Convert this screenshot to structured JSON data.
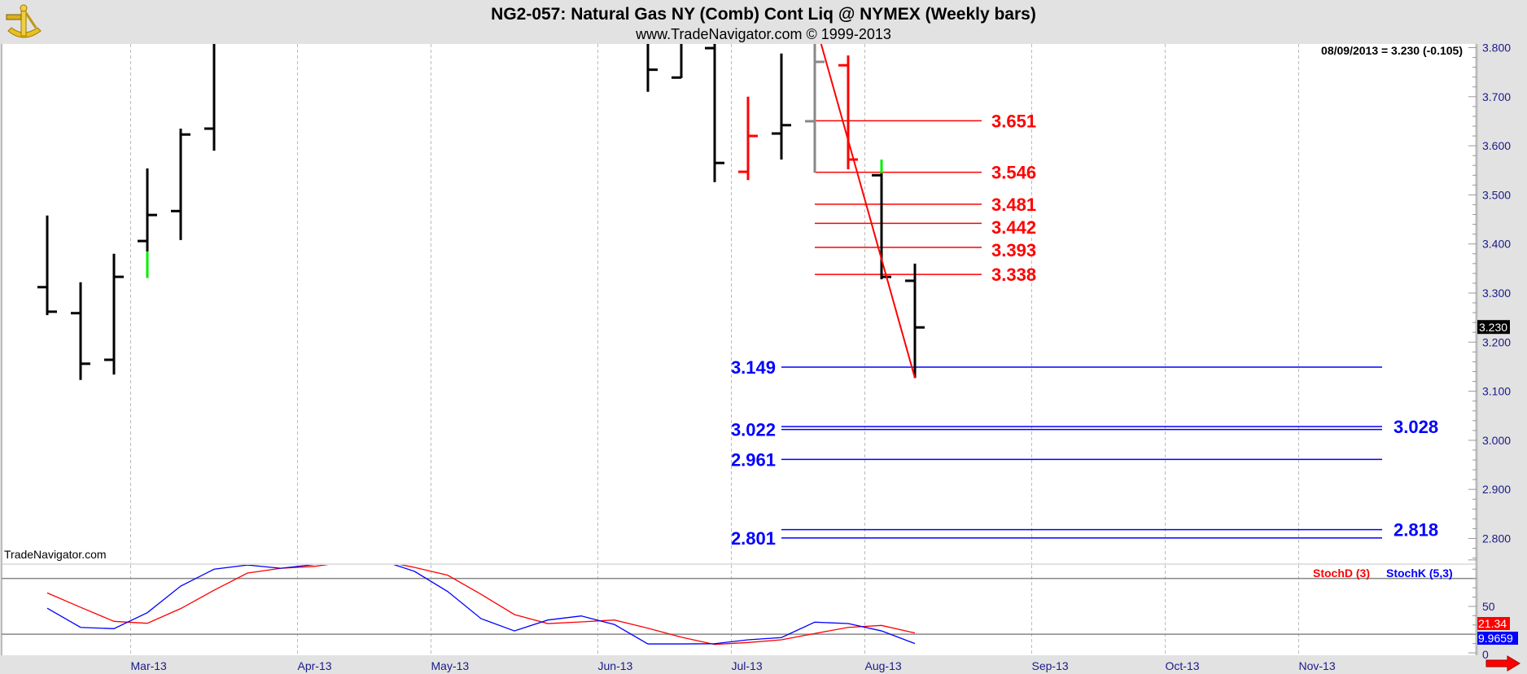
{
  "header": {
    "title": "NG2-057:  Natural Gas NY (Comb) Cont Liq @ NYMEX  (Weekly bars)",
    "subtitle": "www.TradeNavigator.com © 1999-2013",
    "readout": "08/09/2013 = 3.230 (-0.105)",
    "logo_icon": "sextant-icon"
  },
  "watermark": "TradeNavigator.com",
  "colors": {
    "up_bar": "#000000",
    "down_bar": "#ff0000",
    "neutral_bar": "#888888",
    "highlight": "#00ee00",
    "fib_red": "#ff0000",
    "fib_blue": "#0000ff",
    "stoch_d": "#ff0000",
    "stoch_k": "#0000ff",
    "panel_bg": "#ffffff",
    "frame_bg": "#e2e2e2"
  },
  "chart_data": [
    {
      "type": "ohlc",
      "title": "NG2-057:  Natural Gas NY (Comb) Cont Liq @ NYMEX  (Weekly bars)",
      "ylim": [
        2.76,
        3.8
      ],
      "yticks": [
        "3.800",
        "3.700",
        "3.600",
        "3.500",
        "3.400",
        "3.300",
        "3.200",
        "3.100",
        "3.000",
        "2.900",
        "2.800"
      ],
      "xticks": [
        "Mar-13",
        "Apr-13",
        "May-13",
        "Jun-13",
        "Jul-13",
        "Aug-13",
        "Sep-13",
        "Oct-13",
        "Nov-13"
      ],
      "grid": "vertical dashed at month starts",
      "last_value": "3.230",
      "note_offchart": "null = above visible range",
      "bars": [
        {
          "date": "2013-02-08",
          "o": 3.312,
          "h": 3.458,
          "l": 3.255,
          "c": 3.262,
          "color": "black"
        },
        {
          "date": "2013-02-15",
          "o": 3.259,
          "h": 3.322,
          "l": 3.123,
          "c": 3.156,
          "color": "black"
        },
        {
          "date": "2013-02-22",
          "o": 3.164,
          "h": 3.38,
          "l": 3.134,
          "c": 3.333,
          "color": "black"
        },
        {
          "date": "2013-03-01",
          "o": 3.406,
          "h": 3.554,
          "l": 3.331,
          "c": 3.459,
          "color": "black",
          "green_from": 3.331,
          "green_to": 3.385
        },
        {
          "date": "2013-03-08",
          "o": 3.467,
          "h": 3.635,
          "l": 3.408,
          "c": 3.623,
          "color": "black"
        },
        {
          "date": "2013-03-15",
          "o": 3.635,
          "h": null,
          "l": 3.59,
          "c": null,
          "color": "black"
        },
        {
          "date": "2013-06-14",
          "o": null,
          "h": null,
          "l": 3.71,
          "c": 3.755,
          "color": "black"
        },
        {
          "date": "2013-06-21",
          "o": 3.739,
          "h": null,
          "l": 3.738,
          "c": null,
          "color": "black"
        },
        {
          "date": "2013-06-28",
          "o": 3.799,
          "h": null,
          "l": 3.526,
          "c": 3.565,
          "color": "black"
        },
        {
          "date": "2013-07-05",
          "o": 3.547,
          "h": 3.7,
          "l": 3.53,
          "c": 3.62,
          "color": "red"
        },
        {
          "date": "2013-07-12",
          "o": 3.625,
          "h": 3.788,
          "l": 3.572,
          "c": 3.642,
          "color": "black"
        },
        {
          "date": "2013-07-19",
          "o": 3.65,
          "h": null,
          "l": 3.545,
          "c": 3.771,
          "color": "gray"
        },
        {
          "date": "2013-07-26",
          "o": 3.764,
          "h": 3.784,
          "l": 3.552,
          "c": 3.572,
          "color": "red"
        },
        {
          "date": "2013-08-02",
          "o": 3.54,
          "h": 3.572,
          "l": 3.328,
          "c": 3.333,
          "color": "black",
          "green_from": 3.544,
          "green_to": 3.572
        },
        {
          "date": "2013-08-09",
          "o": 3.325,
          "h": 3.36,
          "l": 3.127,
          "c": 3.23,
          "color": "black"
        }
      ],
      "first_date": "2013-02-08",
      "trendline": {
        "from": {
          "date": "2013-07-19",
          "price": 3.83
        },
        "to": {
          "date": "2013-08-09",
          "price": 3.127
        },
        "color": "red"
      },
      "fib_levels_red": [
        {
          "value": 3.651,
          "label": "3.651"
        },
        {
          "value": 3.546,
          "label": "3.546"
        },
        {
          "value": 3.481,
          "label": "3.481"
        },
        {
          "value": 3.442,
          "label": "3.442"
        },
        {
          "value": 3.393,
          "label": "3.393"
        },
        {
          "value": 3.338,
          "label": "3.338"
        }
      ],
      "fib_levels_blue": [
        {
          "value": 3.149,
          "label": "3.149",
          "side": "left"
        },
        {
          "value": 3.028,
          "label": "3.028",
          "side": "right"
        },
        {
          "value": 3.022,
          "label": "3.022",
          "side": "left"
        },
        {
          "value": 2.961,
          "label": "2.961",
          "side": "left"
        },
        {
          "value": 2.818,
          "label": "2.818",
          "side": "right"
        },
        {
          "value": 2.801,
          "label": "2.801",
          "side": "left"
        }
      ]
    },
    {
      "type": "line",
      "ylim": [
        0,
        100
      ],
      "yticks": [
        "50",
        "0"
      ],
      "reference_lines": [
        80,
        20
      ],
      "legend": "top-right",
      "series": [
        {
          "name": "StochD (3)",
          "color": "#ff0000",
          "last": "21.34",
          "values": [
            64.5,
            49,
            33.9,
            31.8,
            47.6,
            67.4,
            85.8,
            91,
            93,
            98,
            99,
            92,
            83.5,
            63,
            41.2,
            31.5,
            33.3,
            35.3,
            26.5,
            16.9,
            9,
            11.1,
            14,
            20.8,
            27.4,
            29.5,
            21.34
          ]
        },
        {
          "name": "StochK (5,3)",
          "color": "#0000ff",
          "last": "9.9659",
          "values": [
            48,
            27.4,
            26,
            43.2,
            71.8,
            90,
            94.5,
            91,
            95,
            99,
            99.5,
            87.8,
            66,
            36.8,
            23.6,
            35.3,
            39.7,
            30.4,
            9.6,
            9.6,
            9.8,
            14,
            16.4,
            33,
            31.5,
            23.6,
            9.9659
          ]
        }
      ]
    }
  ],
  "footer": {
    "scroll_icon": "arrow-right-icon"
  }
}
